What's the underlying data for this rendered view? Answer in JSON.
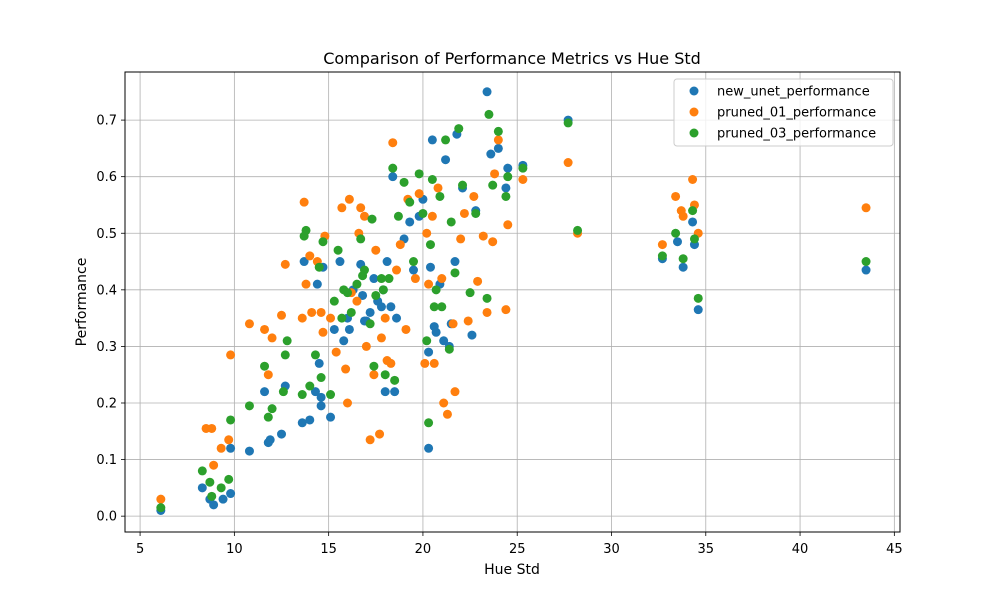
{
  "chart_data": {
    "type": "scatter",
    "title": "Comparison of Performance Metrics vs Hue Std",
    "xlabel": "Hue Std",
    "ylabel": "Performance",
    "xlim": [
      4.2,
      45.3
    ],
    "ylim": [
      -0.028,
      0.785
    ],
    "xticks": [
      5,
      10,
      15,
      20,
      25,
      30,
      35,
      40,
      45
    ],
    "yticks": [
      0.0,
      0.1,
      0.2,
      0.3,
      0.4,
      0.5,
      0.6,
      0.7
    ],
    "grid": true,
    "legend_position": "top-right",
    "series": [
      {
        "name": "new_unet_performance",
        "color": "#1f77b4",
        "points": [
          [
            6.1,
            0.01
          ],
          [
            8.3,
            0.05
          ],
          [
            8.7,
            0.03
          ],
          [
            8.9,
            0.02
          ],
          [
            9.4,
            0.03
          ],
          [
            9.8,
            0.04
          ],
          [
            9.8,
            0.12
          ],
          [
            10.8,
            0.115
          ],
          [
            11.6,
            0.22
          ],
          [
            11.8,
            0.13
          ],
          [
            11.9,
            0.135
          ],
          [
            12.5,
            0.145
          ],
          [
            12.7,
            0.23
          ],
          [
            13.6,
            0.165
          ],
          [
            13.7,
            0.45
          ],
          [
            14.0,
            0.17
          ],
          [
            14.3,
            0.22
          ],
          [
            14.4,
            0.41
          ],
          [
            14.5,
            0.27
          ],
          [
            14.6,
            0.21
          ],
          [
            14.6,
            0.195
          ],
          [
            14.7,
            0.44
          ],
          [
            15.1,
            0.175
          ],
          [
            15.3,
            0.33
          ],
          [
            15.6,
            0.45
          ],
          [
            15.8,
            0.31
          ],
          [
            16.0,
            0.35
          ],
          [
            16.1,
            0.33
          ],
          [
            16.3,
            0.4
          ],
          [
            16.7,
            0.445
          ],
          [
            16.8,
            0.39
          ],
          [
            16.9,
            0.345
          ],
          [
            17.0,
            0.345
          ],
          [
            17.2,
            0.36
          ],
          [
            17.4,
            0.42
          ],
          [
            17.6,
            0.38
          ],
          [
            17.8,
            0.37
          ],
          [
            17.9,
            0.4
          ],
          [
            18.0,
            0.22
          ],
          [
            18.1,
            0.45
          ],
          [
            18.3,
            0.37
          ],
          [
            18.4,
            0.6
          ],
          [
            18.5,
            0.22
          ],
          [
            18.6,
            0.35
          ],
          [
            19.0,
            0.49
          ],
          [
            19.3,
            0.52
          ],
          [
            19.5,
            0.435
          ],
          [
            19.8,
            0.53
          ],
          [
            20.0,
            0.56
          ],
          [
            20.3,
            0.12
          ],
          [
            20.3,
            0.29
          ],
          [
            20.4,
            0.44
          ],
          [
            20.5,
            0.665
          ],
          [
            20.6,
            0.335
          ],
          [
            20.7,
            0.325
          ],
          [
            20.9,
            0.41
          ],
          [
            21.1,
            0.31
          ],
          [
            21.2,
            0.63
          ],
          [
            21.4,
            0.3
          ],
          [
            21.5,
            0.34
          ],
          [
            21.7,
            0.45
          ],
          [
            21.8,
            0.675
          ],
          [
            22.1,
            0.58
          ],
          [
            22.6,
            0.32
          ],
          [
            22.8,
            0.54
          ],
          [
            23.4,
            0.75
          ],
          [
            23.6,
            0.64
          ],
          [
            24.0,
            0.65
          ],
          [
            24.4,
            0.58
          ],
          [
            24.5,
            0.615
          ],
          [
            25.3,
            0.62
          ],
          [
            27.7,
            0.7
          ],
          [
            32.7,
            0.455
          ],
          [
            33.5,
            0.485
          ],
          [
            33.8,
            0.44
          ],
          [
            34.3,
            0.52
          ],
          [
            34.4,
            0.48
          ],
          [
            34.6,
            0.365
          ],
          [
            43.5,
            0.435
          ]
        ]
      },
      {
        "name": "pruned_01_performance",
        "color": "#ff7f0e",
        "points": [
          [
            6.1,
            0.03
          ],
          [
            8.5,
            0.155
          ],
          [
            8.8,
            0.155
          ],
          [
            8.9,
            0.09
          ],
          [
            9.3,
            0.12
          ],
          [
            9.7,
            0.135
          ],
          [
            9.8,
            0.285
          ],
          [
            10.8,
            0.34
          ],
          [
            11.6,
            0.33
          ],
          [
            11.8,
            0.25
          ],
          [
            12.0,
            0.315
          ],
          [
            12.5,
            0.355
          ],
          [
            12.7,
            0.445
          ],
          [
            13.6,
            0.35
          ],
          [
            13.7,
            0.555
          ],
          [
            13.8,
            0.41
          ],
          [
            14.0,
            0.46
          ],
          [
            14.1,
            0.36
          ],
          [
            14.4,
            0.45
          ],
          [
            14.6,
            0.36
          ],
          [
            14.7,
            0.325
          ],
          [
            14.8,
            0.495
          ],
          [
            15.1,
            0.35
          ],
          [
            15.4,
            0.29
          ],
          [
            15.7,
            0.545
          ],
          [
            15.9,
            0.26
          ],
          [
            16.0,
            0.2
          ],
          [
            16.1,
            0.56
          ],
          [
            16.2,
            0.395
          ],
          [
            16.5,
            0.38
          ],
          [
            16.6,
            0.5
          ],
          [
            16.7,
            0.545
          ],
          [
            16.9,
            0.53
          ],
          [
            17.0,
            0.3
          ],
          [
            17.2,
            0.135
          ],
          [
            17.4,
            0.25
          ],
          [
            17.5,
            0.47
          ],
          [
            17.7,
            0.145
          ],
          [
            17.8,
            0.315
          ],
          [
            18.0,
            0.35
          ],
          [
            18.1,
            0.275
          ],
          [
            18.3,
            0.27
          ],
          [
            18.4,
            0.66
          ],
          [
            18.6,
            0.435
          ],
          [
            18.8,
            0.48
          ],
          [
            19.1,
            0.33
          ],
          [
            19.2,
            0.56
          ],
          [
            19.6,
            0.42
          ],
          [
            19.8,
            0.57
          ],
          [
            20.1,
            0.27
          ],
          [
            20.2,
            0.5
          ],
          [
            20.3,
            0.41
          ],
          [
            20.5,
            0.53
          ],
          [
            20.6,
            0.27
          ],
          [
            20.8,
            0.58
          ],
          [
            21.0,
            0.42
          ],
          [
            21.1,
            0.2
          ],
          [
            21.3,
            0.18
          ],
          [
            21.6,
            0.34
          ],
          [
            21.7,
            0.22
          ],
          [
            22.0,
            0.49
          ],
          [
            22.2,
            0.535
          ],
          [
            22.4,
            0.345
          ],
          [
            22.7,
            0.565
          ],
          [
            22.9,
            0.415
          ],
          [
            23.2,
            0.495
          ],
          [
            23.4,
            0.36
          ],
          [
            23.7,
            0.485
          ],
          [
            23.8,
            0.605
          ],
          [
            24.0,
            0.665
          ],
          [
            24.4,
            0.365
          ],
          [
            24.5,
            0.515
          ],
          [
            25.3,
            0.595
          ],
          [
            27.7,
            0.625
          ],
          [
            28.2,
            0.5
          ],
          [
            32.7,
            0.48
          ],
          [
            33.4,
            0.565
          ],
          [
            33.7,
            0.54
          ],
          [
            33.8,
            0.53
          ],
          [
            34.3,
            0.595
          ],
          [
            34.4,
            0.55
          ],
          [
            34.6,
            0.5
          ],
          [
            43.5,
            0.545
          ]
        ]
      },
      {
        "name": "pruned_03_performance",
        "color": "#2ca02c",
        "points": [
          [
            6.1,
            0.015
          ],
          [
            8.3,
            0.08
          ],
          [
            8.7,
            0.06
          ],
          [
            8.8,
            0.035
          ],
          [
            9.3,
            0.05
          ],
          [
            9.7,
            0.065
          ],
          [
            9.8,
            0.17
          ],
          [
            10.8,
            0.195
          ],
          [
            11.6,
            0.265
          ],
          [
            11.8,
            0.175
          ],
          [
            12.0,
            0.19
          ],
          [
            12.6,
            0.22
          ],
          [
            12.7,
            0.285
          ],
          [
            12.8,
            0.31
          ],
          [
            13.6,
            0.215
          ],
          [
            13.7,
            0.495
          ],
          [
            13.8,
            0.505
          ],
          [
            14.0,
            0.23
          ],
          [
            14.3,
            0.285
          ],
          [
            14.5,
            0.44
          ],
          [
            14.6,
            0.245
          ],
          [
            14.7,
            0.485
          ],
          [
            15.1,
            0.215
          ],
          [
            15.3,
            0.38
          ],
          [
            15.5,
            0.47
          ],
          [
            15.7,
            0.35
          ],
          [
            15.8,
            0.4
          ],
          [
            16.0,
            0.395
          ],
          [
            16.2,
            0.36
          ],
          [
            16.5,
            0.41
          ],
          [
            16.7,
            0.49
          ],
          [
            16.8,
            0.425
          ],
          [
            16.9,
            0.435
          ],
          [
            17.2,
            0.34
          ],
          [
            17.3,
            0.525
          ],
          [
            17.4,
            0.265
          ],
          [
            17.5,
            0.39
          ],
          [
            17.8,
            0.42
          ],
          [
            17.9,
            0.4
          ],
          [
            18.0,
            0.25
          ],
          [
            18.2,
            0.42
          ],
          [
            18.4,
            0.615
          ],
          [
            18.5,
            0.24
          ],
          [
            18.7,
            0.53
          ],
          [
            19.0,
            0.59
          ],
          [
            19.3,
            0.555
          ],
          [
            19.5,
            0.45
          ],
          [
            19.8,
            0.605
          ],
          [
            20.0,
            0.535
          ],
          [
            20.2,
            0.31
          ],
          [
            20.3,
            0.165
          ],
          [
            20.4,
            0.48
          ],
          [
            20.5,
            0.595
          ],
          [
            20.6,
            0.37
          ],
          [
            20.7,
            0.4
          ],
          [
            20.9,
            0.565
          ],
          [
            21.0,
            0.37
          ],
          [
            21.2,
            0.665
          ],
          [
            21.4,
            0.295
          ],
          [
            21.5,
            0.52
          ],
          [
            21.7,
            0.43
          ],
          [
            21.9,
            0.685
          ],
          [
            22.1,
            0.585
          ],
          [
            22.5,
            0.395
          ],
          [
            22.8,
            0.535
          ],
          [
            23.4,
            0.385
          ],
          [
            23.5,
            0.71
          ],
          [
            23.7,
            0.585
          ],
          [
            24.0,
            0.68
          ],
          [
            24.4,
            0.565
          ],
          [
            24.5,
            0.6
          ],
          [
            25.3,
            0.615
          ],
          [
            27.7,
            0.695
          ],
          [
            28.2,
            0.505
          ],
          [
            32.7,
            0.46
          ],
          [
            33.4,
            0.5
          ],
          [
            33.8,
            0.455
          ],
          [
            34.3,
            0.54
          ],
          [
            34.4,
            0.49
          ],
          [
            34.6,
            0.385
          ],
          [
            43.5,
            0.45
          ]
        ]
      }
    ]
  }
}
